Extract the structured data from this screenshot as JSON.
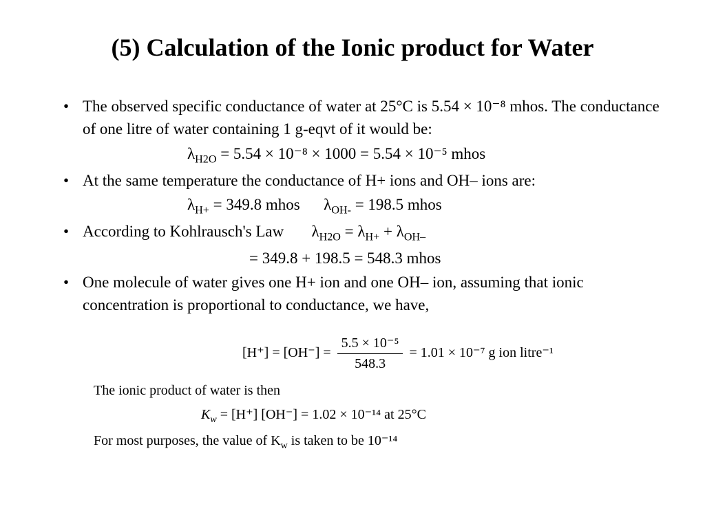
{
  "title": "(5) Calculation of the Ionic product for Water",
  "bullets": {
    "b1": "The observed specific conductance of  water at 25°C is 5.54 × 10⁻⁸ mhos. The conductance of one litre of water containing 1 g-eqvt of it would be:",
    "eq1_prefix": "λ",
    "eq1_sub": "H2O",
    "eq1_rest": " = 5.54 × 10⁻⁸ × 1000 = 5.54 × 10⁻⁵ mhos",
    "b2": "At the same temperature the conductance of H+ ions and OH– ions are:",
    "eq2a": "λ",
    "eq2a_sub": "H+",
    "eq2a_val": " = 349.8 mhos",
    "eq2b": "λ",
    "eq2b_sub": "OH-",
    "eq2b_val": " = 198.5 mhos",
    "b3_pre": "According to Kohlrausch's Law",
    "b3_eq": "λ",
    "b3_eq_s1": "H2O",
    "b3_eq_mid": " = λ",
    "b3_eq_s2": "H+",
    "b3_eq_mid2": " + λ",
    "b3_eq_s3": "OH–",
    "eq3": "= 349.8 + 198.5 = 548.3 mhos",
    "b4": "One molecule of water gives one H+ ion and one OH– ion, assuming that ionic concentration is proportional to conductance, we have,",
    "frac_lhs": "[H⁺] = [OH⁻] = ",
    "frac_num": "5.5 × 10⁻⁵",
    "frac_den": "548.3",
    "frac_rhs": " = 1.01 × 10⁻⁷ g ion litre⁻¹",
    "line5": "The ionic product of water is then",
    "eq5_lhs": "K",
    "eq5_sub": "w",
    "eq5_rest": " = [H⁺] [OH⁻] = 1.02 × 10⁻¹⁴ at 25°C",
    "line6_pre": "For most purposes, the value of K",
    "line6_sub": "w",
    "line6_post": " is taken to be 10⁻¹⁴"
  },
  "style": {
    "bg": "#ffffff",
    "fg": "#000000",
    "title_fontsize": 36,
    "body_fontsize": 23,
    "eq_fontsize": 20,
    "font_family": "Times New Roman"
  }
}
